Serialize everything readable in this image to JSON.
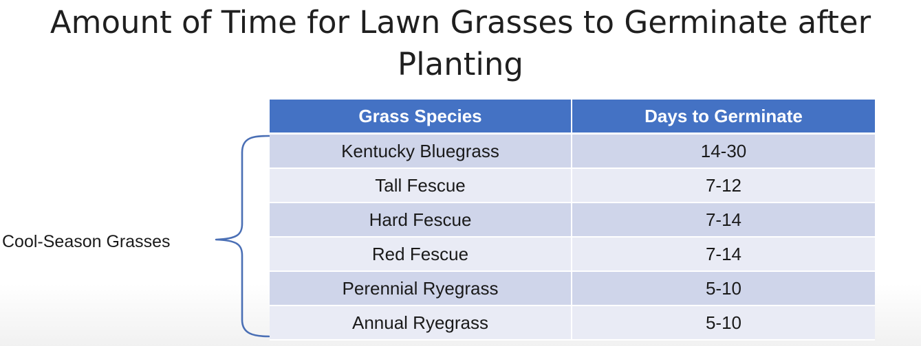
{
  "slide": {
    "title": "Amount of Time for Lawn Grasses to Germinate after Planting"
  },
  "group": {
    "label": "Cool-Season Grasses"
  },
  "table": {
    "headers": [
      "Grass Species",
      "Days to Germinate"
    ],
    "rows": [
      {
        "species": "Kentucky Bluegrass",
        "days": "14-30"
      },
      {
        "species": "Tall Fescue",
        "days": "7-12"
      },
      {
        "species": "Hard Fescue",
        "days": "7-14"
      },
      {
        "species": "Red Fescue",
        "days": "7-14"
      },
      {
        "species": "Perennial Ryegrass",
        "days": "5-10"
      },
      {
        "species": "Annual Ryegrass",
        "days": "5-10"
      }
    ]
  },
  "colors": {
    "header_bg": "#4472c4",
    "row_band_dark": "#cfd5ea",
    "row_band_light": "#e9ebf5",
    "brace": "#4a6fb5"
  }
}
